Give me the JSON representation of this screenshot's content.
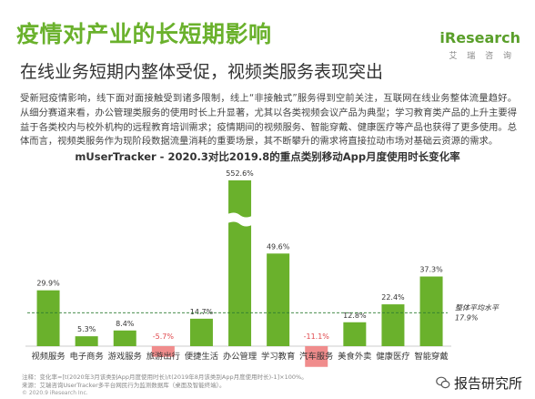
{
  "page": {
    "title": "疫情对产业的长短期影响",
    "subtitle": "在线业务短期内整体受促，视频类服务表现突出",
    "logo": "iResearch",
    "logo_cn": "艾 瑞 咨 询",
    "intro": "受新冠疫情影响，线下面对面接触受到诸多限制，线上“非接触式”服务得到空前关注，互联网在线业务整体流量趋好。从细分赛道来看，办公管理类服务的使用时长上升显著，尤其以各类视频会议产品为典型；学习教育类产品的上升主要得益于各类校内与校外机构的远程教育培训需求；疫情期间的视频服务、智能穿戴、健康医疗等产品也获得了更多使用。总体而言，视频类服务作为现阶段数据流量消耗的重要场景，其不断攀升的需求将直接拉动市场对基础云资源的需求。",
    "footnote1": "注释：变化率=[t(2020年3月该类别App月度使用时长)/t(2019年8月该类别App月度使用时长)-1]×100%。",
    "footnote2": "来源：艾瑞咨询UserTracker多平台网民行为监测数据库（桌面及智能终端）。",
    "copyright": "© 2020.9 iResearch Inc.",
    "watermark": "报告研究所"
  },
  "chart_data": {
    "type": "bar",
    "title": "mUserTracker - 2020.3对比2019.8的重点类别移动App月度使用时长变化率",
    "categories": [
      "视频服务",
      "电子商务",
      "游戏服务",
      "旅游出行",
      "便捷生活",
      "办公管理",
      "学习教育",
      "汽车服务",
      "美食外卖",
      "健康医疗",
      "智能穿戴"
    ],
    "values": [
      29.9,
      5.3,
      8.4,
      -5.7,
      14.7,
      552.6,
      49.6,
      -11.1,
      12.8,
      22.4,
      37.3
    ],
    "value_labels": [
      "29.9%",
      "5.3%",
      "8.4%",
      "-5.7%",
      "14.7%",
      "552.6%",
      "49.6%",
      "-11.1%",
      "12.8%",
      "22.4%",
      "37.3%"
    ],
    "axis_break": true,
    "average": {
      "label_line1": "整体平均水平",
      "label_line2": "17.9%",
      "value": 17.9
    },
    "colors": {
      "positive": "#6ab12c",
      "negative": "#f08c8c",
      "negative_text": "#e0484d",
      "avg_line": "#2e7d32"
    }
  }
}
